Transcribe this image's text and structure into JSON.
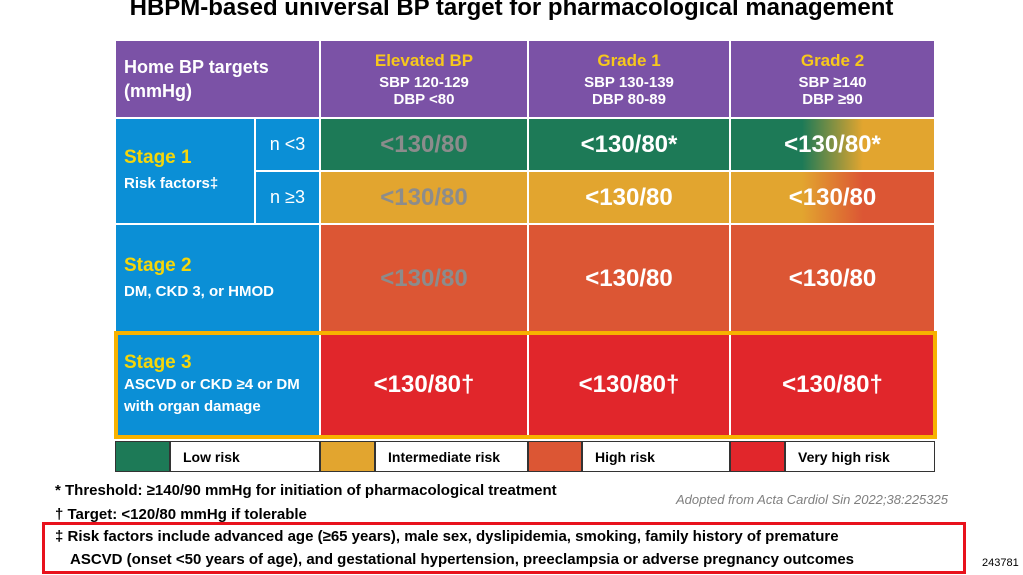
{
  "title": "HBPM-based universal BP target for pharmacological management",
  "table": {
    "header": {
      "label": "Home BP targets (mmHg)",
      "columns": [
        {
          "name": "Elevated BP",
          "lines": [
            "SBP 120-129",
            "DBP <80"
          ]
        },
        {
          "name": "Grade 1",
          "lines": [
            "SBP 130-139",
            "DBP 80-89"
          ]
        },
        {
          "name": "Grade 2",
          "lines": [
            "SBP ≥140",
            "DBP ≥90"
          ]
        }
      ]
    },
    "rows": [
      {
        "stage": "Stage 1",
        "description": "Risk factors‡",
        "subrows": [
          {
            "label": "n <3",
            "cells": [
              "<130/80",
              "<130/80*",
              "<130/80*"
            ]
          },
          {
            "label": "n ≥3",
            "cells": [
              "<130/80",
              "<130/80",
              "<130/80"
            ]
          }
        ]
      },
      {
        "stage": "Stage 2",
        "description": "DM, CKD 3, or HMOD",
        "cells": [
          "<130/80",
          "<130/80",
          "<130/80"
        ]
      },
      {
        "stage": "Stage 3",
        "description": "ASCVD or CKD ≥4 or DM with organ damage",
        "cells": [
          "<130/80†",
          "<130/80†",
          "<130/80†"
        ]
      }
    ]
  },
  "legend": [
    "Low risk",
    "Intermediate risk",
    "High risk",
    "Very high risk"
  ],
  "footnotes": [
    "* Threshold: ≥140/90 mmHg for initiation of pharmacological treatment",
    "† Target: <120/80 mmHg if tolerable"
  ],
  "source": "Adopted from Acta Cardiol Sin 2022;38:225325",
  "risk_note": [
    "‡ Risk factors include advanced age (≥65 years), male sex, dyslipidemia, smoking, family history of premature",
    "ASCVD (onset <50 years of age), and gestational hypertension, preeclampsia or adverse pregnancy outcomes"
  ],
  "slide_id": "243781"
}
